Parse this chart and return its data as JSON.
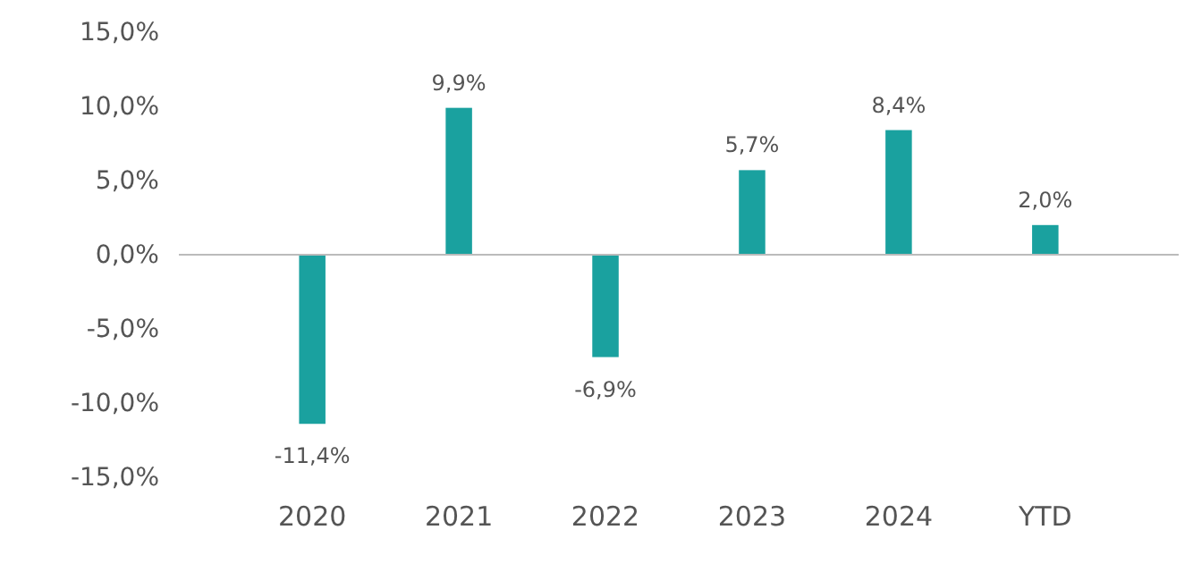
{
  "chart_data": {
    "type": "bar",
    "categories": [
      "2020",
      "2021",
      "2022",
      "2023",
      "2024",
      "YTD"
    ],
    "values": [
      -11.4,
      9.9,
      -6.9,
      5.7,
      8.4,
      2.0
    ],
    "value_labels": [
      "-11,4%",
      "9,9%",
      "-6,9%",
      "5,7%",
      "8,4%",
      "2,0%"
    ],
    "color": "#1aa19f",
    "ylim": [
      -15,
      15
    ],
    "yticks": [
      {
        "value": -15,
        "label": "-15,0%"
      },
      {
        "value": -10,
        "label": "-10,0%"
      },
      {
        "value": -5,
        "label": "-5,0%"
      },
      {
        "value": 0,
        "label": "0,0%"
      },
      {
        "value": 5,
        "label": "5,0%"
      },
      {
        "value": 10,
        "label": "10,0%"
      },
      {
        "value": 15,
        "label": "15,0%"
      }
    ],
    "tick_labels": "xy"
  }
}
